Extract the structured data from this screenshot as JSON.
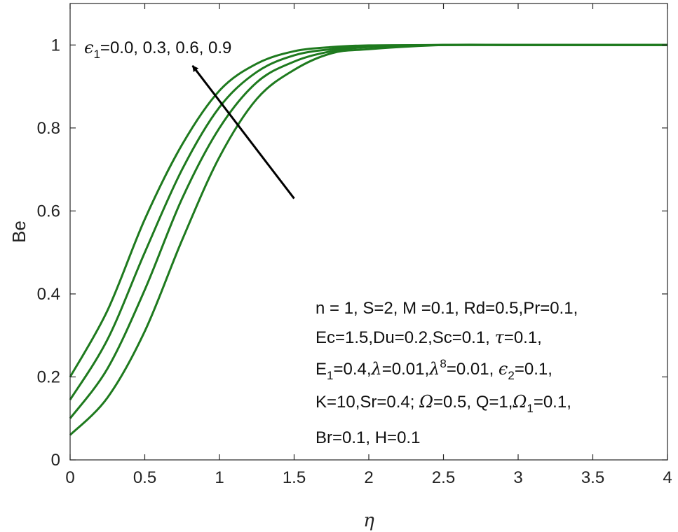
{
  "chart_data": {
    "type": "line",
    "xlabel": "η",
    "ylabel": "Be",
    "xlim": [
      0,
      4
    ],
    "ylim": [
      0,
      1.1
    ],
    "xticks": [
      0,
      0.5,
      1,
      1.5,
      2,
      2.5,
      3,
      3.5,
      4
    ],
    "xtick_labels": [
      "0",
      "0.5",
      "1",
      "1.5",
      "2",
      "2.5",
      "3",
      "3.5",
      "4"
    ],
    "yticks": [
      0,
      0.2,
      0.4,
      0.6,
      0.8,
      1
    ],
    "ytick_labels": [
      "0",
      "0.2",
      "0.4",
      "0.6",
      "0.8",
      "1"
    ],
    "grid": false,
    "line_color": "#1e7a1e",
    "x": [
      0,
      0.25,
      0.5,
      0.75,
      1,
      1.25,
      1.5,
      1.75,
      2,
      2.5,
      3,
      3.5,
      4
    ],
    "series": [
      {
        "values": [
          0.06,
          0.15,
          0.31,
          0.53,
          0.73,
          0.87,
          0.94,
          0.98,
          0.99,
          1.0,
          1.0,
          1.0,
          1.0
        ]
      },
      {
        "values": [
          0.1,
          0.22,
          0.41,
          0.63,
          0.8,
          0.91,
          0.96,
          0.985,
          0.995,
          1.0,
          1.0,
          1.0,
          1.0
        ]
      },
      {
        "values": [
          0.145,
          0.29,
          0.5,
          0.7,
          0.85,
          0.935,
          0.975,
          0.99,
          0.997,
          1.0,
          1.0,
          1.0,
          1.0
        ]
      },
      {
        "values": [
          0.2,
          0.36,
          0.58,
          0.76,
          0.89,
          0.955,
          0.985,
          0.995,
          0.999,
          1.0,
          1.0,
          1.0,
          1.0
        ]
      }
    ],
    "annotations": {
      "arrow_label_sym": "ϵ",
      "arrow_label_sub": "1",
      "arrow_label_values": "=0.0, 0.3, 0.6, 0.9",
      "arrow_from": [
        1.5,
        0.63
      ],
      "arrow_to": [
        0.82,
        0.95
      ],
      "params": {
        "line1": "n = 1, S=2, M =0.1, Rd=0.5,Pr=0.1,",
        "line2_a": "Ec=1.5,Du=0.2,Sc=0.1, ",
        "line2_tau": "τ",
        "line2_b": "=0.1,",
        "line3_E": "E",
        "line3_E_sub": "1",
        "line3_a": "=0.4,",
        "line3_lam": "λ",
        "line3_b": "=0.01,",
        "line3_lam2": "λ",
        "line3_sup": "8",
        "line3_c": "=0.01,  ",
        "line3_eps": "ϵ",
        "line3_eps_sub": "2",
        "line3_d": "=0.1,",
        "line4_a": "K=10,Sr=0.4; ",
        "line4_Om": "Ω",
        "line4_b": "=0.5, Q=1,",
        "line4_Om1": "Ω",
        "line4_Om1_sub": "1",
        "line4_c": "=0.1,",
        "line5": "Br=0.1, H=0.1"
      }
    }
  }
}
